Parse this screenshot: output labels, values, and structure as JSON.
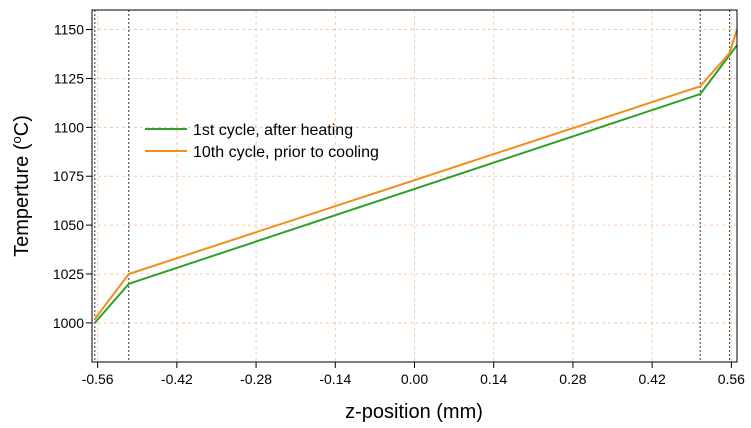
{
  "chart_data": {
    "type": "line",
    "title": "",
    "xlabel": "z-position (mm)",
    "ylabel": "Temperture (",
    "ylabel_sup": "o",
    "ylabel_tail": "C)",
    "xlim": [
      -0.57,
      0.57
    ],
    "ylim": [
      980,
      1160
    ],
    "xticks": [
      -0.56,
      -0.42,
      -0.28,
      -0.14,
      0.0,
      0.14,
      0.28,
      0.42,
      0.56
    ],
    "xtick_labels": [
      "-0.56",
      "-0.42",
      "-0.28",
      "-0.14",
      "0.00",
      "0.14",
      "0.28",
      "0.42",
      "0.56"
    ],
    "yticks": [
      1000,
      1025,
      1050,
      1075,
      1100,
      1125,
      1150
    ],
    "ytick_labels": [
      "1000",
      "1025",
      "1050",
      "1075",
      "1100",
      "1125",
      "1150"
    ],
    "grid": true,
    "grid_color": "#f6c9a6",
    "vertical_markers": [
      -0.565,
      -0.505,
      0.505,
      0.557
    ],
    "legend_position": "upper-left",
    "series": [
      {
        "name": "1st cycle, after heating",
        "color": "#2ca02c",
        "x": [
          -0.565,
          -0.505,
          0.505,
          0.557,
          0.57
        ],
        "y": [
          1000,
          1020,
          1117,
          1137,
          1142
        ]
      },
      {
        "name": "10th cycle, prior to cooling",
        "color": "#f28e1c",
        "x": [
          -0.565,
          -0.505,
          0.505,
          0.557,
          0.57
        ],
        "y": [
          1002,
          1025,
          1121,
          1138,
          1150
        ]
      }
    ]
  }
}
